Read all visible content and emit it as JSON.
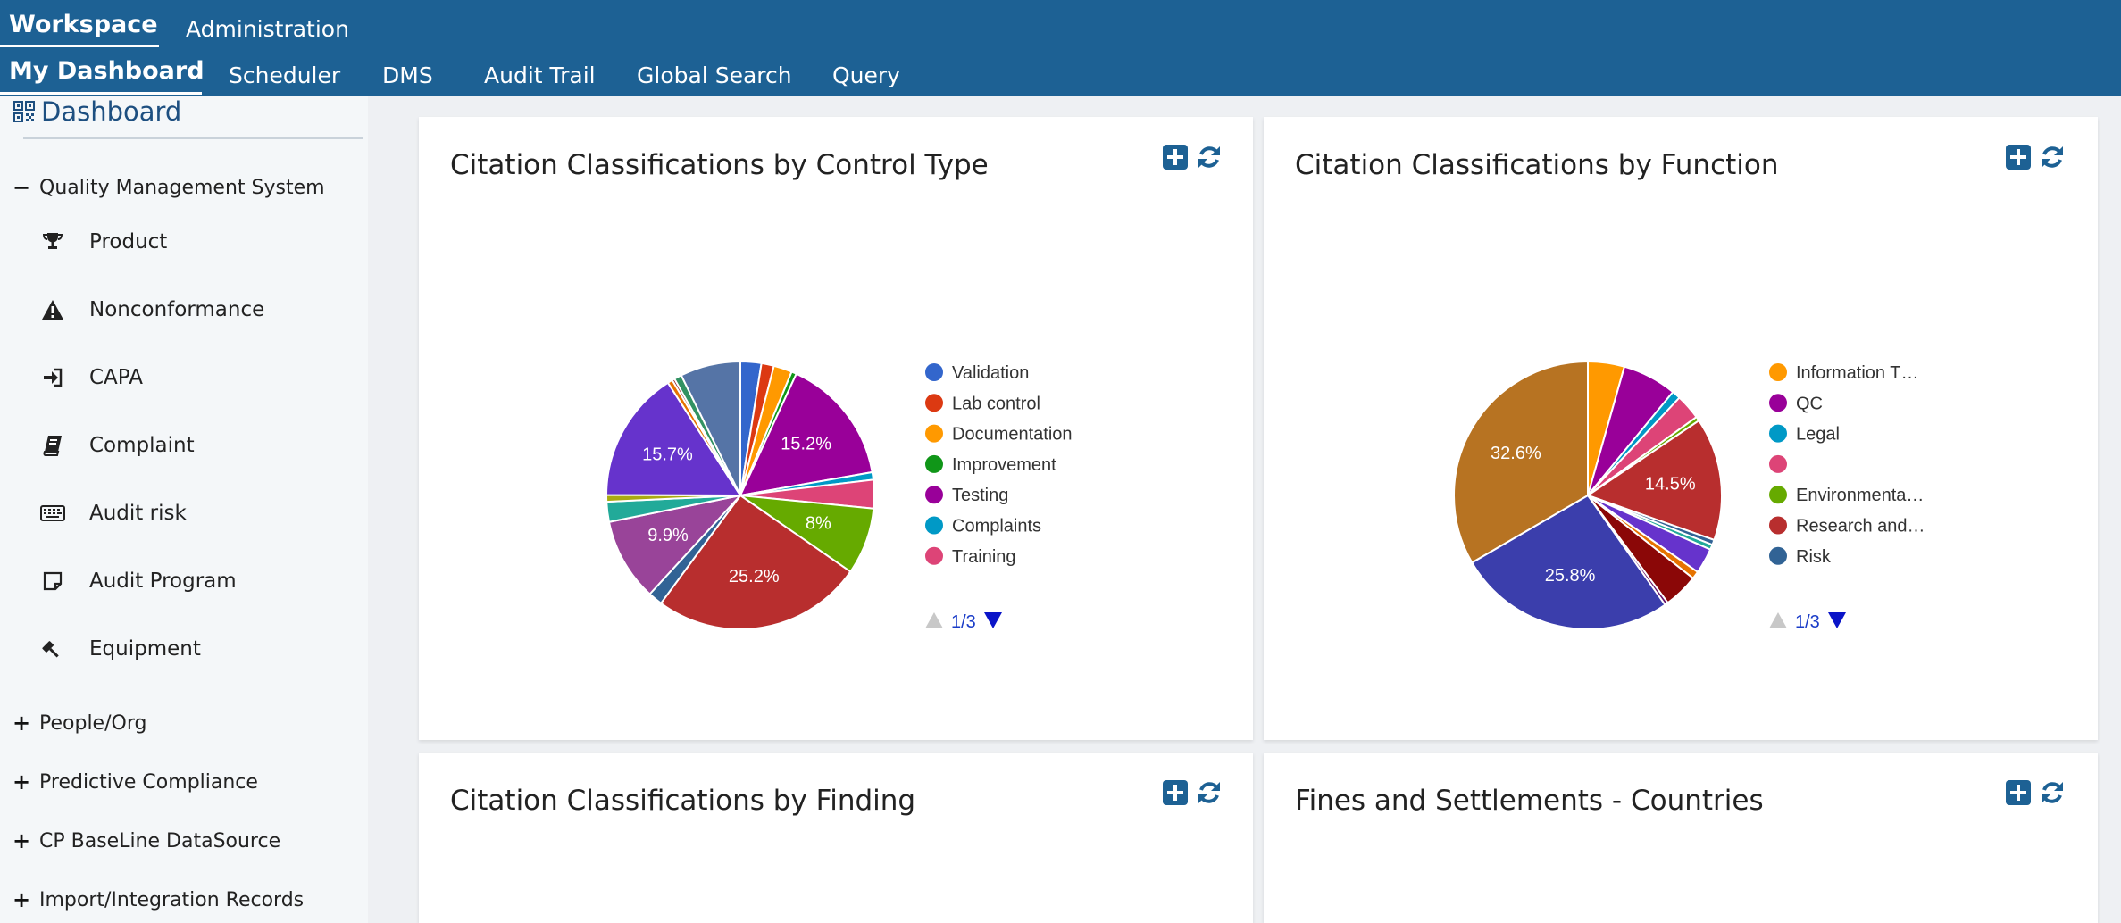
{
  "topnav": {
    "row1": [
      "Workspace",
      "Administration"
    ],
    "row2": [
      "My Dashboard",
      "Scheduler",
      "DMS",
      "Audit Trail",
      "Global Search",
      "Query"
    ]
  },
  "sidebar": {
    "dashboard_label": "Dashboard",
    "qms_label": "Quality Management System",
    "items": [
      {
        "label": "Product",
        "icon": "trophy-icon"
      },
      {
        "label": "Nonconformance",
        "icon": "warning-icon"
      },
      {
        "label": "CAPA",
        "icon": "sign-in-icon"
      },
      {
        "label": "Complaint",
        "icon": "book-icon"
      },
      {
        "label": "Audit risk",
        "icon": "keyboard-icon"
      },
      {
        "label": "Audit Program",
        "icon": "sticky-note-icon"
      },
      {
        "label": "Equipment",
        "icon": "gavel-icon"
      }
    ],
    "sections": [
      "People/Org",
      "Predictive Compliance",
      "CP BaseLine DataSource",
      "Import/Integration Records"
    ]
  },
  "panels": [
    {
      "title": "Citation Classifications by Control Type"
    },
    {
      "title": "Citation Classifications by Function"
    },
    {
      "title": "Citation Classifications by Finding"
    },
    {
      "title": "Fines and Settlements - Countries"
    }
  ],
  "chart_data": [
    {
      "type": "pie",
      "title": "Citation Classifications by Control Type",
      "slices": [
        {
          "value": 2.5,
          "color": "#3366cc",
          "label": ""
        },
        {
          "value": 1.5,
          "color": "#dc3912",
          "label": ""
        },
        {
          "value": 2.2,
          "color": "#ff9900",
          "label": ""
        },
        {
          "value": 0.6,
          "color": "#109618",
          "label": ""
        },
        {
          "value": 15.2,
          "color": "#990099",
          "label": "15.2%"
        },
        {
          "value": 0.9,
          "color": "#0099c6",
          "label": ""
        },
        {
          "value": 3.4,
          "color": "#dd4477",
          "label": ""
        },
        {
          "value": 8,
          "color": "#66aa00",
          "label": "8%"
        },
        {
          "value": 25.2,
          "color": "#b82e2e",
          "label": "25.2%"
        },
        {
          "value": 1.7,
          "color": "#316395",
          "label": ""
        },
        {
          "value": 9.9,
          "color": "#994499",
          "label": "9.9%"
        },
        {
          "value": 2.4,
          "color": "#22aa99",
          "label": ""
        },
        {
          "value": 0.8,
          "color": "#aaaa11",
          "label": ""
        },
        {
          "value": 15.7,
          "color": "#6633cc",
          "label": "15.7%"
        },
        {
          "value": 0.6,
          "color": "#e67300",
          "label": ""
        },
        {
          "value": 0.3,
          "color": "#8b0707",
          "label": ""
        },
        {
          "value": 0.9,
          "color": "#329262",
          "label": ""
        },
        {
          "value": 7.2,
          "color": "#5574a6",
          "label": ""
        }
      ],
      "legend": [
        {
          "name": "Validation",
          "color": "#3366cc"
        },
        {
          "name": "Lab control",
          "color": "#dc3912"
        },
        {
          "name": "Documentation",
          "color": "#ff9900"
        },
        {
          "name": "Improvement",
          "color": "#109618"
        },
        {
          "name": "Testing",
          "color": "#990099"
        },
        {
          "name": "Complaints",
          "color": "#0099c6"
        },
        {
          "name": "Training",
          "color": "#dd4477"
        }
      ],
      "pager": "1/3",
      "legend_position": "right"
    },
    {
      "type": "pie",
      "title": "Citation Classifications by Function",
      "slices": [
        {
          "value": 4.3,
          "color": "#ff9900",
          "label": ""
        },
        {
          "value": 6.4,
          "color": "#990099",
          "label": ""
        },
        {
          "value": 1.0,
          "color": "#0099c6",
          "label": ""
        },
        {
          "value": 3.0,
          "color": "#dd4477",
          "label": ""
        },
        {
          "value": 0.5,
          "color": "#66aa00",
          "label": ""
        },
        {
          "value": 14.5,
          "color": "#b82e2e",
          "label": "14.5%"
        },
        {
          "value": 0.6,
          "color": "#316395",
          "label": ""
        },
        {
          "value": 0.6,
          "color": "#22aa99",
          "label": ""
        },
        {
          "value": 3.0,
          "color": "#6633cc",
          "label": ""
        },
        {
          "value": 0.9,
          "color": "#e67300",
          "label": ""
        },
        {
          "value": 4.1,
          "color": "#8b0707",
          "label": ""
        },
        {
          "value": 0.4,
          "color": "#651067",
          "label": ""
        },
        {
          "value": 25.8,
          "color": "#3b3eac",
          "label": "25.8%"
        },
        {
          "value": 32.6,
          "color": "#b77322",
          "label": "32.6%"
        }
      ],
      "legend": [
        {
          "name": "Information T…",
          "color": "#ff9900"
        },
        {
          "name": "QC",
          "color": "#990099"
        },
        {
          "name": "Legal",
          "color": "#0099c6"
        },
        {
          "name": "",
          "color": "#dd4477"
        },
        {
          "name": "Environmenta…",
          "color": "#66aa00"
        },
        {
          "name": "Research and…",
          "color": "#b82e2e"
        },
        {
          "name": "Risk",
          "color": "#316395"
        }
      ],
      "pager": "1/3",
      "legend_position": "right"
    }
  ]
}
